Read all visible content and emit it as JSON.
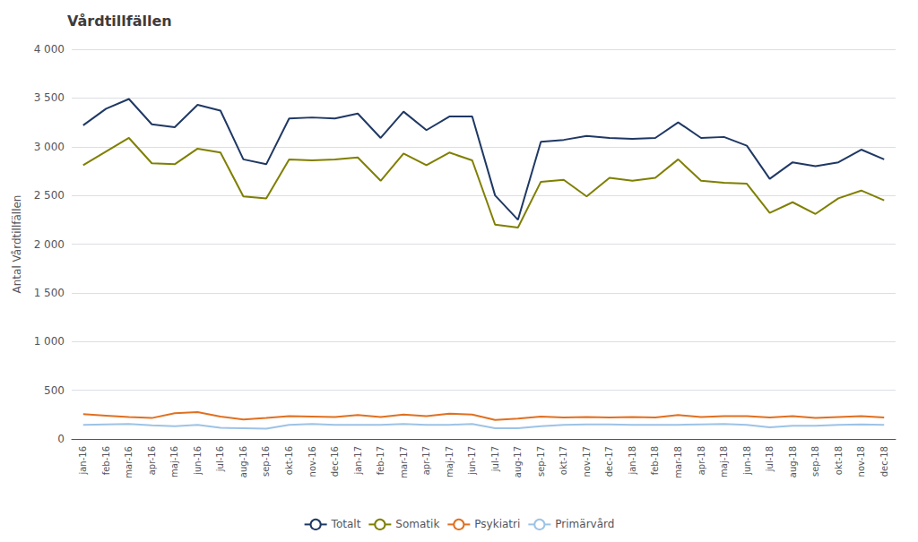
{
  "chart_data": {
    "type": "line",
    "title": "Vårdtillfällen",
    "ylabel": "Antal Vårdtillfällen",
    "categories": [
      "jan-16",
      "feb-16",
      "mar-16",
      "apr-16",
      "maj-16",
      "jun-16",
      "jul-16",
      "aug-16",
      "sep-16",
      "okt-16",
      "nov-16",
      "dec-16",
      "jan-17",
      "feb-17",
      "mar-17",
      "apr-17",
      "maj-17",
      "jun-17",
      "jul-17",
      "aug-17",
      "sep-17",
      "okt-17",
      "nov-17",
      "dec-17",
      "jan-18",
      "feb-18",
      "mar-18",
      "apr-18",
      "maj-18",
      "jun-18",
      "jul-18",
      "aug-18",
      "sep-18",
      "okt-18",
      "nov-18",
      "dec-18"
    ],
    "series": [
      {
        "name": "Totalt",
        "color": "#1F3864",
        "values": [
          3220,
          3390,
          3490,
          3230,
          3200,
          3430,
          3370,
          2870,
          2820,
          3290,
          3300,
          3290,
          3340,
          3090,
          3360,
          3170,
          3310,
          3310,
          2500,
          2250,
          3050,
          3070,
          3110,
          3090,
          3080,
          3090,
          3250,
          3090,
          3100,
          3010,
          2670,
          2840,
          2800,
          2840,
          2970,
          2870
        ]
      },
      {
        "name": "Somatik",
        "color": "#7F7F00",
        "values": [
          2810,
          2950,
          3090,
          2830,
          2820,
          2980,
          2940,
          2490,
          2470,
          2870,
          2860,
          2870,
          2890,
          2650,
          2930,
          2810,
          2940,
          2860,
          2200,
          2170,
          2640,
          2660,
          2490,
          2680,
          2650,
          2680,
          2870,
          2650,
          2630,
          2620,
          2320,
          2430,
          2310,
          2470,
          2550,
          2450
        ]
      },
      {
        "name": "Psykiatri",
        "color": "#E07020",
        "values": [
          255,
          240,
          225,
          215,
          265,
          275,
          230,
          200,
          215,
          235,
          230,
          225,
          245,
          225,
          250,
          235,
          260,
          250,
          195,
          210,
          230,
          220,
          225,
          220,
          225,
          220,
          245,
          225,
          235,
          235,
          220,
          235,
          215,
          225,
          235,
          220
        ]
      },
      {
        "name": "Primärvård",
        "color": "#9DC3E6",
        "values": [
          145,
          150,
          155,
          140,
          130,
          145,
          115,
          110,
          105,
          145,
          155,
          145,
          145,
          145,
          155,
          145,
          145,
          155,
          110,
          110,
          130,
          145,
          150,
          150,
          145,
          145,
          145,
          150,
          155,
          145,
          120,
          135,
          135,
          145,
          150,
          145
        ]
      }
    ],
    "ylim": [
      0,
      4000
    ],
    "yticks": [
      0,
      500,
      {
        "value": 1000,
        "label": "1 000"
      },
      {
        "value": 1500,
        "label": "1 500"
      },
      {
        "value": 2000,
        "label": "2 000"
      },
      {
        "value": 2500,
        "label": "2 500"
      },
      {
        "value": 3000,
        "label": "3 000"
      },
      {
        "value": 3500,
        "label": "3 500"
      },
      {
        "value": 4000,
        "label": "4 000"
      }
    ],
    "grid": true,
    "legend": "bottom"
  }
}
